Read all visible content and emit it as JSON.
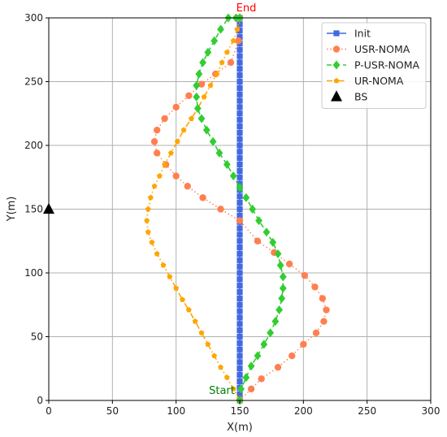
{
  "chart_data": {
    "type": "line",
    "xlabel": "X(m)",
    "ylabel": "Y(m)",
    "xlim": [
      0,
      300
    ],
    "ylim": [
      0,
      300
    ],
    "xticks": [
      "0",
      "50",
      "100",
      "150",
      "200",
      "250",
      "300"
    ],
    "yticks": [
      "0",
      "50",
      "100",
      "150",
      "200",
      "250",
      "300"
    ],
    "grid": true,
    "legend_position": "top-right",
    "series": [
      {
        "name": "Init",
        "color": "#4169e1",
        "marker": "square",
        "line": "solid",
        "x": [
          150,
          150,
          150,
          150,
          150,
          150,
          150,
          150,
          150,
          150,
          150,
          150,
          150,
          150,
          150,
          150,
          150,
          150,
          150,
          150,
          150,
          150,
          150,
          150,
          150,
          150,
          150,
          150,
          150,
          150,
          150,
          150,
          150,
          150,
          150,
          150,
          150,
          150,
          150,
          150,
          150,
          150,
          150,
          150,
          150,
          150,
          150,
          150,
          150,
          150,
          150,
          150,
          150,
          150,
          150,
          150,
          150,
          150,
          150,
          150,
          150
        ],
        "y": [
          0,
          5,
          10,
          15,
          20,
          25,
          30,
          35,
          40,
          45,
          50,
          55,
          60,
          65,
          70,
          75,
          80,
          85,
          90,
          95,
          100,
          105,
          110,
          115,
          120,
          125,
          130,
          135,
          140,
          145,
          150,
          155,
          160,
          165,
          170,
          175,
          180,
          185,
          190,
          195,
          200,
          205,
          210,
          215,
          220,
          225,
          230,
          235,
          240,
          245,
          250,
          255,
          260,
          265,
          270,
          275,
          280,
          285,
          290,
          295,
          300
        ]
      },
      {
        "name": "USR-NOMA",
        "color": "#ff7f50",
        "marker": "circle",
        "line": "dotted",
        "x": [
          150,
          159,
          167,
          180,
          191,
          200,
          210,
          216,
          218,
          215,
          209,
          201,
          189,
          177,
          164,
          150,
          135,
          121,
          109,
          100,
          92,
          85,
          83,
          85,
          91,
          100,
          110,
          120,
          131,
          143,
          149,
          150
        ],
        "y": [
          0,
          9,
          17,
          26,
          35,
          44,
          53,
          62,
          71,
          80,
          89,
          98,
          107,
          116,
          125,
          141,
          150,
          159,
          168,
          176,
          185,
          194,
          203,
          212,
          221,
          230,
          239,
          248,
          256,
          265,
          282,
          300
        ]
      },
      {
        "name": "P-USR-NOMA",
        "color": "#32cd32",
        "marker": "diamond",
        "line": "dashed",
        "x": [
          150,
          151,
          155,
          159,
          164,
          169,
          174,
          178,
          181,
          183,
          184,
          184,
          182,
          180,
          176,
          171,
          165,
          160,
          155,
          150,
          145,
          140,
          134,
          129,
          124,
          120,
          117,
          116,
          116,
          118,
          121,
          125,
          130,
          135,
          141,
          147,
          150,
          150
        ],
        "y": [
          0,
          9,
          18,
          27,
          35,
          44,
          53,
          62,
          71,
          80,
          88,
          97,
          106,
          115,
          124,
          132,
          141,
          150,
          159,
          167,
          176,
          185,
          194,
          203,
          212,
          221,
          229,
          238,
          247,
          256,
          265,
          273,
          282,
          291,
          300,
          300,
          300,
          300
        ]
      },
      {
        "name": "UR-NOMA",
        "color": "#ffa500",
        "marker": "pentagon",
        "line": "dashdot",
        "x": [
          150,
          145,
          140,
          135,
          130,
          125,
          120,
          115,
          110,
          105,
          100,
          95,
          90,
          85,
          81,
          78,
          77,
          78,
          80,
          83,
          87,
          91,
          96,
          101,
          106,
          112,
          117,
          122,
          127,
          132,
          136,
          140,
          145,
          148,
          150,
          150
        ],
        "y": [
          0,
          9,
          18,
          26,
          35,
          44,
          53,
          62,
          71,
          79,
          88,
          97,
          106,
          115,
          124,
          132,
          141,
          150,
          159,
          168,
          176,
          185,
          194,
          203,
          212,
          221,
          229,
          238,
          247,
          256,
          265,
          273,
          282,
          291,
          300,
          300
        ]
      },
      {
        "name": "BS",
        "color": "#000000",
        "marker": "triangle",
        "line": "none",
        "x": [
          0
        ],
        "y": [
          150
        ]
      }
    ],
    "annotations": [
      {
        "text": "End",
        "x": 150,
        "y": 300,
        "color": "#ff0000"
      },
      {
        "text": "Start",
        "x": 150,
        "y": 0,
        "color": "#008000"
      }
    ]
  }
}
